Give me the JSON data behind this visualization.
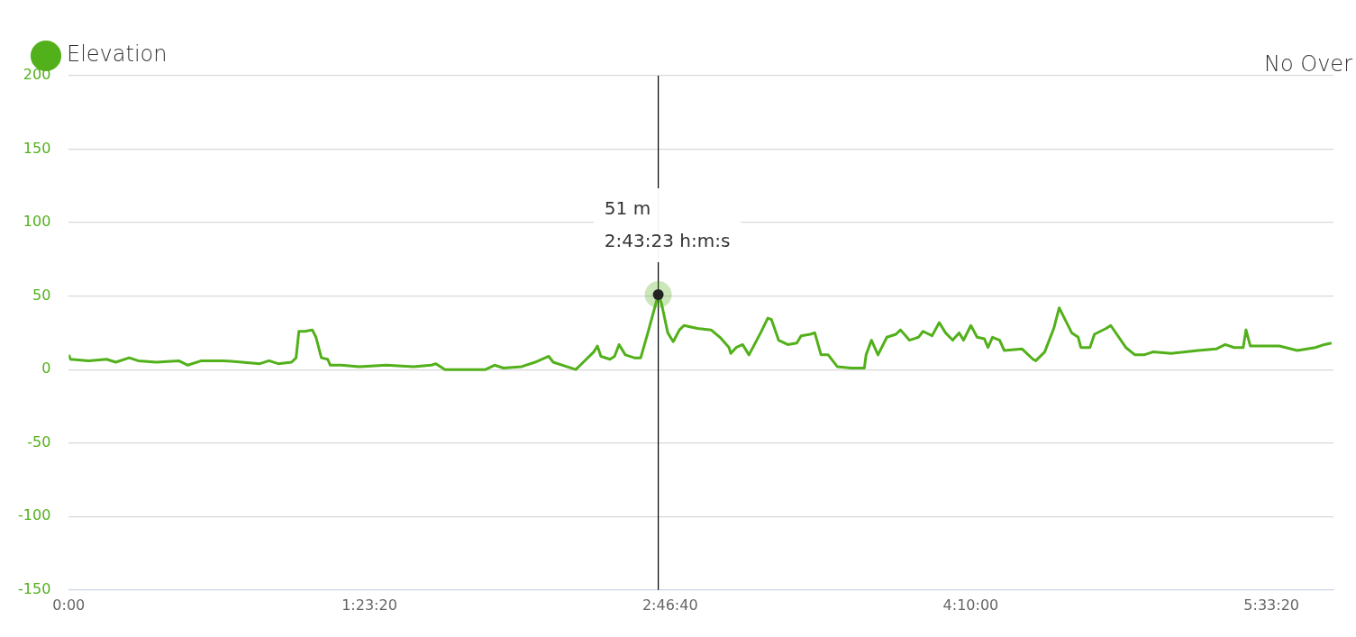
{
  "chart_data": {
    "type": "line",
    "legend": "top left",
    "grid": "y",
    "marker": "none",
    "line_style": "solid",
    "xlim": [
      0,
      5.842
    ],
    "ylim": [
      -150,
      200
    ],
    "xticks": [
      {
        "value": 0,
        "label": "0:00"
      },
      {
        "value": 1.388889,
        "label": "1:23:20"
      },
      {
        "value": 2.777778,
        "label": "2:46:40"
      },
      {
        "value": 4.166667,
        "label": "4:10:00"
      },
      {
        "value": 5.555556,
        "label": "5:33:20"
      }
    ],
    "yticks": [
      -150,
      -100,
      -50,
      0,
      50,
      100,
      150,
      200
    ],
    "ref_lines": [
      {
        "axis": "x",
        "value": 2.723,
        "color": "#000000"
      }
    ],
    "annotations": [
      {
        "text": "51 m\n2:43:23 h:m:s",
        "x": 2.723,
        "y": 51
      },
      "No Over"
    ],
    "series": [
      {
        "name": "Elevation",
        "color": "#52b01a",
        "x": [
          0,
          0.008,
          0.092,
          0.175,
          0.217,
          0.279,
          0.321,
          0.404,
          0.508,
          0.55,
          0.613,
          0.717,
          0.8,
          0.883,
          0.925,
          0.967,
          1.029,
          1.05,
          1.063,
          1.092,
          1.125,
          1.142,
          1.167,
          1.196,
          1.208,
          1.258,
          1.342,
          1.467,
          1.592,
          1.675,
          1.696,
          1.738,
          1.842,
          1.925,
          1.967,
          2.008,
          2.092,
          2.154,
          2.217,
          2.238,
          2.3,
          2.342,
          2.363,
          2.425,
          2.442,
          2.458,
          2.5,
          2.521,
          2.542,
          2.571,
          2.613,
          2.642,
          2.675,
          2.723,
          2.738,
          2.767,
          2.792,
          2.821,
          2.842,
          2.904,
          2.967,
          3.008,
          3.05,
          3.058,
          3.083,
          3.113,
          3.142,
          3.196,
          3.229,
          3.246,
          3.279,
          3.321,
          3.363,
          3.383,
          3.425,
          3.446,
          3.475,
          3.508,
          3.55,
          3.613,
          3.675,
          3.683,
          3.708,
          3.738,
          3.779,
          3.821,
          3.842,
          3.883,
          3.925,
          3.946,
          3.988,
          4.021,
          4.05,
          4.083,
          4.113,
          4.133,
          4.167,
          4.196,
          4.229,
          4.246,
          4.267,
          4.3,
          4.321,
          4.404,
          4.454,
          4.467,
          4.508,
          4.55,
          4.575,
          4.633,
          4.663,
          4.675,
          4.717,
          4.738,
          4.792,
          4.813,
          4.883,
          4.925,
          4.967,
          5.008,
          5.092,
          5.217,
          5.3,
          5.342,
          5.383,
          5.425,
          5.438,
          5.458,
          5.508,
          5.592,
          5.675,
          5.758,
          5.8,
          5.833
        ],
        "values": [
          10,
          7,
          6,
          7,
          5,
          8,
          6,
          5,
          6,
          3,
          6,
          6,
          5,
          4,
          6,
          4,
          5,
          8,
          26,
          26,
          27,
          22,
          8,
          7,
          3,
          3,
          2,
          3,
          2,
          3,
          4,
          0,
          0,
          0,
          3,
          1,
          2,
          5,
          9,
          5,
          2,
          0,
          3,
          12,
          16,
          9,
          7,
          9,
          17,
          10,
          8,
          8,
          25,
          51,
          45,
          25,
          19,
          27,
          30,
          28,
          27,
          22,
          15,
          11,
          15,
          17,
          10,
          25,
          35,
          34,
          20,
          17,
          18,
          23,
          24,
          25,
          10,
          10,
          2,
          1,
          1,
          10,
          20,
          10,
          22,
          24,
          27,
          20,
          22,
          26,
          23,
          32,
          25,
          20,
          25,
          20,
          30,
          22,
          21,
          15,
          22,
          20,
          13,
          14,
          7,
          6,
          12,
          28,
          42,
          25,
          22,
          15,
          15,
          24,
          28,
          30,
          15,
          10,
          10,
          12,
          11,
          13,
          14,
          17,
          15,
          15,
          27,
          16,
          16,
          16,
          13,
          15,
          17,
          18
        ]
      }
    ]
  }
}
